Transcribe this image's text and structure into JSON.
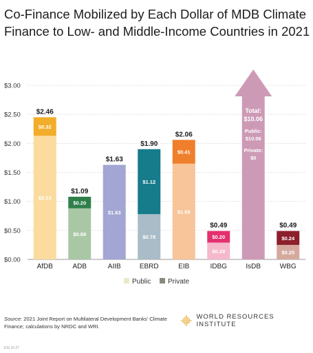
{
  "title": "Co-Finance Mobilized by Each Dollar of MDB Climate Finance to Low- and Middle-Income Countries in 2021",
  "chart_data": {
    "type": "bar",
    "stacked": true,
    "categories": [
      "AfDB",
      "ADB",
      "AIIB",
      "EBRD",
      "EIB",
      "IDBG",
      "IsDB",
      "WBG"
    ],
    "ylim": [
      0,
      3.0
    ],
    "yticks": [
      "$0.00",
      "$0.50",
      "$1.00",
      "$1.50",
      "$2.00",
      "$2.50",
      "$3.00"
    ],
    "ytick_values": [
      0,
      0.5,
      1.0,
      1.5,
      2.0,
      2.5,
      3.0
    ],
    "grid": true,
    "series": [
      {
        "name": "Public",
        "values": [
          2.13,
          0.88,
          1.63,
          0.78,
          1.65,
          0.29,
          null,
          0.25
        ],
        "labels": [
          "$2.13",
          "$0.88",
          "$1.63",
          "$0.78",
          "$1.65",
          "$0.29",
          "",
          "$0.25"
        ],
        "colors": [
          "#fbdb9e",
          "#a9c7a5",
          "#a3a6d3",
          "#a9bcc7",
          "#f8c49a",
          "#f6b8cb",
          "",
          "#d6a99f"
        ]
      },
      {
        "name": "Private",
        "values": [
          0.32,
          0.2,
          0.0,
          1.12,
          0.41,
          0.2,
          null,
          0.24
        ],
        "labels": [
          "$0.32",
          "$0.20",
          "",
          "$1.12",
          "$0.41",
          "$0.20",
          "",
          "$0.24"
        ],
        "colors": [
          "#f2ad2a",
          "#2f7f4a",
          "",
          "#167b8b",
          "#ef7f2c",
          "#e4306e",
          "",
          "#8c1f2c"
        ]
      }
    ],
    "totals": [
      "$2.46",
      "$1.09",
      "$1.63",
      "$1.90",
      "$2.06",
      "$0.49",
      "",
      "$0.49"
    ],
    "off_scale": {
      "category": "IsDB",
      "color": "#cd9ab6",
      "total_label": "Total:",
      "total_value": "$10.06",
      "public_label": "Public:",
      "public_value": "$10.06",
      "private_label": "Private:",
      "private_value": "$0",
      "total": 10.06,
      "public": 10.06,
      "private": 0
    },
    "legend": [
      {
        "name": "Public",
        "color": "#ece9c8"
      },
      {
        "name": "Private",
        "color": "#8a8a80"
      }
    ],
    "legend_position": "bottom"
  },
  "source": {
    "label": "Source:",
    "text": " 2021 Joint Report on Multilateral Development Banks' Climate Finance; calculations by NRDC and WRI."
  },
  "logo": {
    "text": "WORLD RESOURCES INSTITUTE",
    "color": "#e3a82a"
  },
  "code": "ESI 10.27"
}
